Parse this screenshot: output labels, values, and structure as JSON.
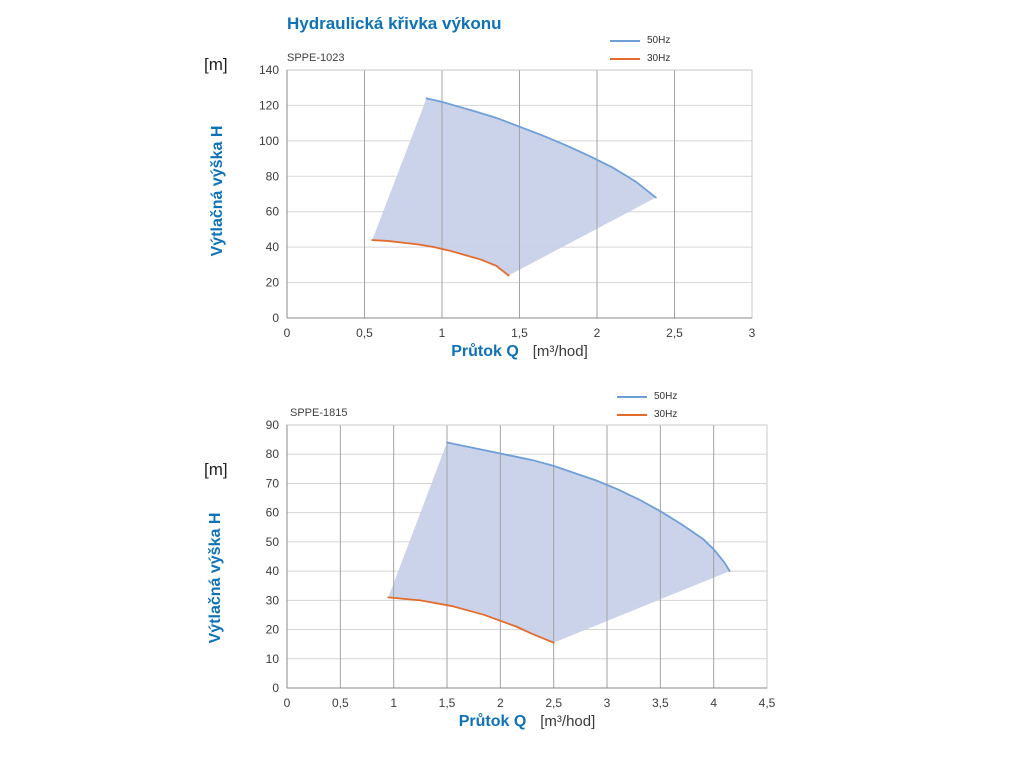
{
  "page": {
    "title": "Hydraulická křivka výkonu"
  },
  "colors": {
    "accent_blue": "#0e72b8",
    "curve_blue": "#6f9fd8",
    "curve_orange": "#e36c2d",
    "area_fill": "#c8d1e9",
    "grid_horizontal": "#d6d6d6",
    "grid_vertical": "#a3a3a3",
    "axis": "#8a8a8a",
    "border": "#c9c9c9"
  },
  "chart_data": [
    {
      "type": "area",
      "title": "SPPE-1023",
      "xlabel": "Průtok Q",
      "xlabel_unit": "[m³/hod]",
      "ylabel": "Výtlačná výška H",
      "ylabel_unit": "[m]",
      "xlim": [
        0,
        3
      ],
      "ylim": [
        0,
        140
      ],
      "xtick_values": [
        0,
        0.5,
        1,
        1.5,
        2,
        2.5,
        3
      ],
      "xtick_labels": [
        "0",
        "0,5",
        "1",
        "1,5",
        "2",
        "2,5",
        "3"
      ],
      "ytick_values": [
        0,
        20,
        40,
        60,
        80,
        100,
        120,
        140
      ],
      "grid": true,
      "legend_position": "top-right",
      "fill_color": "#c8d1e9",
      "series": [
        {
          "name": "50Hz",
          "color": "#6f9fd8",
          "points": [
            [
              0.9,
              124
            ],
            [
              1.0,
              122
            ],
            [
              1.1,
              119.5
            ],
            [
              1.2,
              117
            ],
            [
              1.35,
              113
            ],
            [
              1.5,
              108
            ],
            [
              1.65,
              103
            ],
            [
              1.8,
              97.5
            ],
            [
              1.95,
              91.5
            ],
            [
              2.1,
              85
            ],
            [
              2.25,
              77
            ],
            [
              2.38,
              68
            ]
          ]
        },
        {
          "name": "30Hz",
          "color": "#e36c2d",
          "points": [
            [
              0.55,
              44
            ],
            [
              0.65,
              43.5
            ],
            [
              0.75,
              42.5
            ],
            [
              0.85,
              41.5
            ],
            [
              0.95,
              40
            ],
            [
              1.05,
              38
            ],
            [
              1.15,
              35.5
            ],
            [
              1.25,
              33
            ],
            [
              1.35,
              29.5
            ],
            [
              1.43,
              24
            ]
          ]
        }
      ]
    },
    {
      "type": "area",
      "title": "SPPE-1815",
      "xlabel": "Průtok Q",
      "xlabel_unit": "[m³/hod]",
      "ylabel": "Výtlačná výška H",
      "ylabel_unit": "[m]",
      "xlim": [
        0,
        4.5
      ],
      "ylim": [
        0,
        90
      ],
      "xtick_values": [
        0,
        0.5,
        1,
        1.5,
        2,
        2.5,
        3,
        3.5,
        4,
        4.5
      ],
      "xtick_labels": [
        "0",
        "0,5",
        "1",
        "1,5",
        "2",
        "2,5",
        "3",
        "3,5",
        "4",
        "4,5"
      ],
      "ytick_values": [
        0,
        10,
        20,
        30,
        40,
        50,
        60,
        70,
        80,
        90
      ],
      "grid": true,
      "legend_position": "top-right",
      "fill_color": "#c8d1e9",
      "series": [
        {
          "name": "50Hz",
          "color": "#6f9fd8",
          "points": [
            [
              1.5,
              84
            ],
            [
              1.7,
              82.5
            ],
            [
              1.9,
              81
            ],
            [
              2.1,
              79.5
            ],
            [
              2.3,
              78
            ],
            [
              2.5,
              76
            ],
            [
              2.7,
              73.5
            ],
            [
              2.9,
              71
            ],
            [
              3.1,
              68
            ],
            [
              3.3,
              64.5
            ],
            [
              3.5,
              60.5
            ],
            [
              3.7,
              56
            ],
            [
              3.9,
              51
            ],
            [
              4.0,
              47.5
            ],
            [
              4.1,
              43
            ],
            [
              4.15,
              40
            ]
          ]
        },
        {
          "name": "30Hz",
          "color": "#e36c2d",
          "points": [
            [
              0.95,
              31
            ],
            [
              1.1,
              30.5
            ],
            [
              1.25,
              30
            ],
            [
              1.4,
              29
            ],
            [
              1.55,
              28
            ],
            [
              1.7,
              26.5
            ],
            [
              1.85,
              25
            ],
            [
              2.0,
              23
            ],
            [
              2.15,
              21
            ],
            [
              2.3,
              18.5
            ],
            [
              2.4,
              17
            ],
            [
              2.5,
              15.5
            ]
          ]
        }
      ]
    }
  ]
}
